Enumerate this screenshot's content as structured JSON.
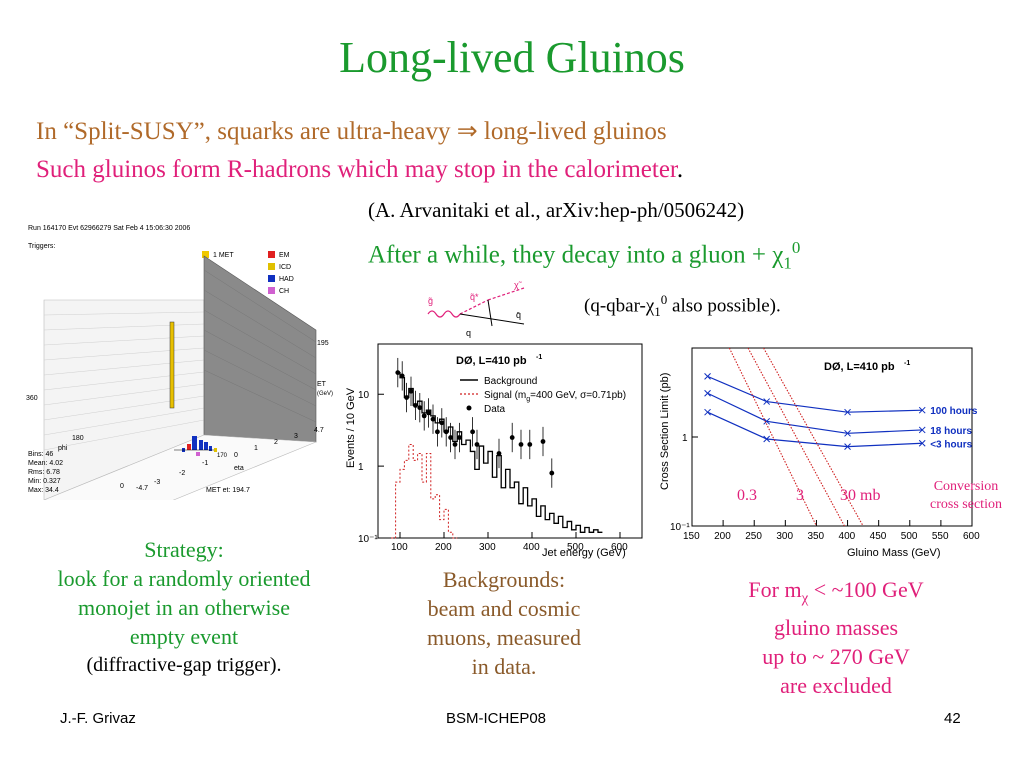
{
  "slide": {
    "title": "Long-lived Gluinos",
    "line1": "In “Split-SUSY”, squarks are ultra-heavy ⇒ long-lived gluinos",
    "line2": "Such gluinos form R-hadrons which may stop in the calorimeter",
    "line2_end": ".",
    "reference": "(A. Arvanitaki et al., arXiv:hep-ph/0506242)",
    "decay_text": "After a while, they decay into a gluon + χ",
    "decay_sub": "1",
    "decay_sup": "0",
    "decay2_text": "(q-qbar-χ",
    "decay2_sub": "1",
    "decay2_sup": "0",
    "decay2_end": " also possible).",
    "strategy": [
      "Strategy:",
      "look for a randomly oriented",
      "monojet in an otherwise",
      "empty event"
    ],
    "strategy_note": "(diffractive-gap trigger).",
    "backgrounds": [
      "Backgrounds:",
      "beam and cosmic",
      "muons, measured",
      "in data."
    ],
    "exclusion_prefix": "For m",
    "exclusion_sub": "χ",
    "exclusion_rest": " < ~100 GeV",
    "exclusion": [
      "gluino masses",
      "up to ~ 270 GeV",
      "are excluded"
    ],
    "conversion": [
      "Conversion",
      "cross section"
    ],
    "conv_values": [
      "0.3",
      "3",
      "30 mb"
    ]
  },
  "event_display": {
    "header": "Run 164170 Evt 62966279 Sat Feb  4 15:06:30 2006",
    "triggers_label": "Triggers:",
    "trigger": "1 MET",
    "legend": [
      {
        "label": "EM",
        "color": "#e02020"
      },
      {
        "label": "ICD",
        "color": "#e0c000"
      },
      {
        "label": "HAD",
        "color": "#1030c0"
      },
      {
        "label": "CH",
        "color": "#d060d0"
      }
    ],
    "et_label": "ET",
    "et_unit": "(GeV)",
    "et_max": "195",
    "phi_label": "phi",
    "eta_label": "eta",
    "phi_ticks": [
      "360",
      "180",
      "0"
    ],
    "eta_ticks": [
      "4.7",
      "3",
      "2",
      "1",
      "0",
      "-1",
      "-2",
      "-3",
      "-4.7"
    ],
    "stats": [
      "Bins: 46",
      "Mean: 4.02",
      "Rms: 6.78",
      "Min: 0.327",
      "Max: 34.4"
    ],
    "met_label": "MET et: 194.7",
    "met_phi": "170"
  },
  "diagram": {
    "labels": [
      "g̃",
      "q̃*",
      "χ̃",
      "q",
      "q̄"
    ]
  },
  "colors": {
    "title_green": "#1a9a2e",
    "pink": "#e0207a",
    "brown": "#b06a2a"
  },
  "chart_data": [
    {
      "type": "line",
      "title": "DØ, L=410 pb",
      "title_sup": "-1",
      "xlabel": "Jet energy (GeV)",
      "ylabel": "Events / 10 GeV",
      "xlim": [
        50,
        650
      ],
      "ylim": [
        0.1,
        50
      ],
      "yscale": "log",
      "x_ticks": [
        "100",
        "200",
        "300",
        "400",
        "500",
        "600"
      ],
      "y_ticks": [
        "10",
        "1",
        "10⁻¹"
      ],
      "legend": [
        "Background",
        "Signal (m",
        "g",
        "=400 GeV, σ=0.71pb)",
        "Data"
      ],
      "series": [
        {
          "name": "Background",
          "style": "step",
          "x": [
            90,
            100,
            110,
            120,
            130,
            140,
            150,
            160,
            170,
            180,
            190,
            200,
            210,
            220,
            230,
            240,
            250,
            260,
            270,
            280,
            290,
            300,
            310,
            320,
            330,
            340,
            350,
            360,
            370,
            380,
            390,
            400,
            410,
            420,
            430,
            440,
            450,
            460,
            470,
            480,
            490,
            500,
            510,
            520,
            530,
            540,
            550
          ],
          "values": [
            20,
            17,
            9,
            12,
            7,
            8,
            5.5,
            6,
            5,
            4,
            4.5,
            3,
            3.5,
            2.2,
            3,
            2,
            2.3,
            1.6,
            0.9,
            1.9,
            1.1,
            1.6,
            0.7,
            1.4,
            0.5,
            0.9,
            0.5,
            0.6,
            0.3,
            0.5,
            0.28,
            0.35,
            0.2,
            0.28,
            0.18,
            0.22,
            0.16,
            0.2,
            0.14,
            0.17,
            0.13,
            0.15,
            0.12,
            0.14,
            0.12,
            0.13,
            0.12
          ]
        },
        {
          "name": "Signal (m=400 GeV, σ=0.71pb)",
          "style": "step-dashed",
          "x": [
            80,
            90,
            100,
            110,
            120,
            130,
            140,
            150,
            160,
            170,
            180,
            190,
            200,
            210,
            220
          ],
          "values": [
            0.1,
            0.6,
            0.9,
            1.2,
            2,
            1.2,
            1.5,
            0.6,
            1.5,
            0.35,
            0.4,
            0.18,
            0.25,
            0.12,
            0.1
          ]
        },
        {
          "name": "Data",
          "style": "points",
          "x": [
            95,
            105,
            115,
            125,
            135,
            145,
            155,
            165,
            175,
            185,
            195,
            205,
            215,
            225,
            235,
            265,
            275,
            325,
            355,
            375,
            395,
            425,
            445
          ],
          "values": [
            20,
            18,
            9,
            11,
            7,
            6.5,
            5,
            5.5,
            4.5,
            3,
            4,
            3,
            2.5,
            2,
            2.5,
            3,
            2,
            1.5,
            2.5,
            2,
            2,
            2.2,
            0.8
          ]
        }
      ]
    },
    {
      "type": "line",
      "title": "DØ, L=410 pb",
      "title_sup": "-1",
      "xlabel": "Gluino Mass (GeV)",
      "ylabel": "Cross Section Limit (pb)",
      "xlim": [
        150,
        600
      ],
      "ylim": [
        0.1,
        10
      ],
      "yscale": "log",
      "x_ticks": [
        "150",
        "200",
        "250",
        "300",
        "350",
        "400",
        "450",
        "500",
        "550",
        "600"
      ],
      "y_ticks": [
        "1",
        "10⁻¹"
      ],
      "series": [
        {
          "name": "100 hours",
          "x": [
            175,
            270,
            400,
            520
          ],
          "values": [
            4.8,
            2.5,
            1.9,
            2.0
          ]
        },
        {
          "name": "18 hours",
          "x": [
            175,
            270,
            400,
            520
          ],
          "values": [
            3.1,
            1.5,
            1.1,
            1.2
          ]
        },
        {
          "name": "<3 hours",
          "x": [
            175,
            270,
            400,
            520
          ],
          "values": [
            1.9,
            0.95,
            0.78,
            0.85
          ]
        },
        {
          "name": "0.3",
          "style": "dotted",
          "x": [
            210,
            350
          ],
          "values": [
            10,
            0.1
          ]
        },
        {
          "name": "3",
          "style": "dotted",
          "x": [
            240,
            395
          ],
          "values": [
            10,
            0.1
          ]
        },
        {
          "name": "30 mb",
          "style": "dotted",
          "x": [
            265,
            425
          ],
          "values": [
            10,
            0.1
          ]
        }
      ]
    }
  ],
  "footer": {
    "author": "J.-F. Grivaz",
    "conference": "BSM-ICHEP08",
    "page": "42"
  }
}
